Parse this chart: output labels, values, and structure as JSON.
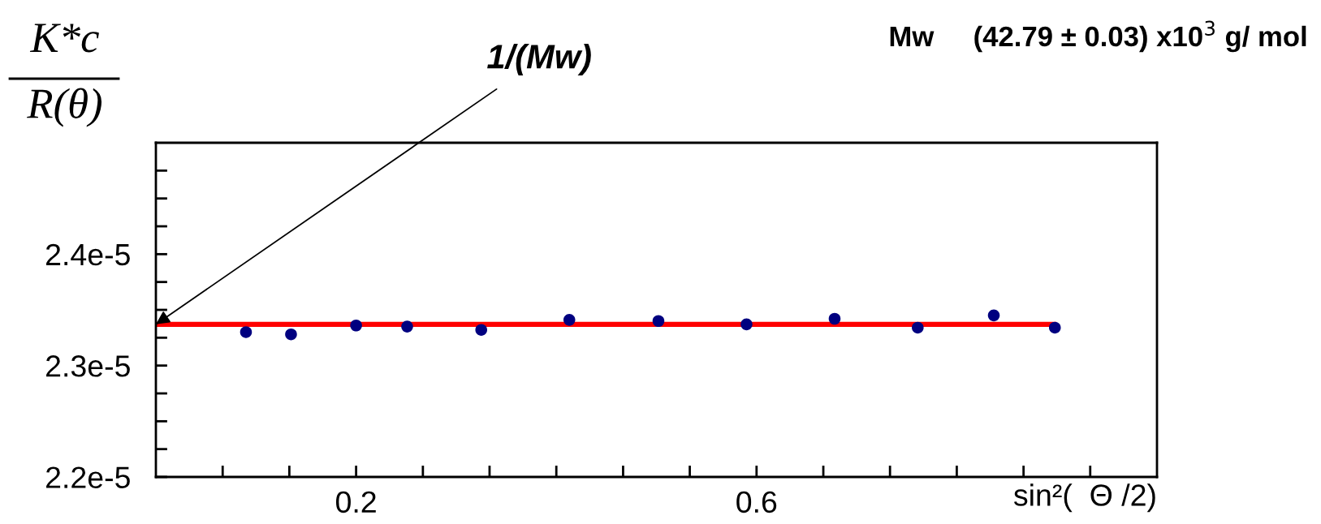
{
  "chart_data": {
    "type": "scatter",
    "title": "Mw     (42.79 ± 0.03) x10$^{3}$ g/ mol",
    "ylabel": "K*c\nR(θ)",
    "xlabel": "sin²(  Θ /2)",
    "x": [
      0.09,
      0.135,
      0.2,
      0.251,
      0.325,
      0.413,
      0.502,
      0.59,
      0.678,
      0.761,
      0.837,
      0.898
    ],
    "series": [
      {
        "color": "#000080",
        "marker": "circle",
        "values": [
          2.33e-05,
          2.328e-05,
          2.336e-05,
          2.335e-05,
          2.332e-05,
          2.341e-05,
          2.34e-05,
          2.337e-05,
          2.342e-05,
          2.334e-05,
          2.345e-05,
          2.334e-05
        ]
      },
      {
        "type": "line",
        "marker": "none",
        "color": "#ff0000",
        "x": [
          0,
          0.897
        ],
        "values": [
          2.337e-05,
          2.337e-05
        ]
      }
    ],
    "annotations": [
      {
        "text": "1/(Mw)",
        "x": 0,
        "y": 2.337e-05
      }
    ],
    "xlim": [
      0,
      1
    ],
    "ylim": [
      2.2e-05,
      2.5e-05
    ],
    "xticks": [
      {
        "value": 0.0667,
        "label": null
      },
      {
        "value": 0.1333,
        "label": null
      },
      0.2,
      {
        "value": 0.2667,
        "label": null
      },
      {
        "value": 0.3333,
        "label": null
      },
      {
        "value": 0.4,
        "label": null
      },
      {
        "value": 0.4667,
        "label": null
      },
      {
        "value": 0.5333,
        "label": null
      },
      0.6,
      {
        "value": 0.6667,
        "label": null
      },
      {
        "value": 0.7333,
        "label": null
      },
      {
        "value": 0.8,
        "label": null
      },
      {
        "value": 0.8667,
        "label": null
      },
      {
        "value": 0.9333,
        "label": null
      }
    ],
    "yticks": [
      {
        "value": 2.2e-05,
        "label": "2.2e-5"
      },
      {
        "value": 2.225e-05,
        "label": null
      },
      {
        "value": 2.25e-05,
        "label": null
      },
      {
        "value": 2.275e-05,
        "label": null
      },
      {
        "value": 2.3e-05,
        "label": "2.3e-5"
      },
      {
        "value": 2.325e-05,
        "label": null
      },
      {
        "value": 2.35e-05,
        "label": null
      },
      {
        "value": 2.375e-05,
        "label": null
      },
      {
        "value": 2.4e-05,
        "label": "2.4e-5"
      },
      {
        "value": 2.425e-05,
        "label": null
      },
      {
        "value": 2.45e-05,
        "label": null
      },
      {
        "value": 2.475e-05,
        "label": null
      }
    ],
    "grid": false,
    "legend": false
  }
}
